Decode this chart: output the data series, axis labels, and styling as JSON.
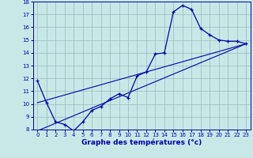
{
  "xlabel": "Graphe des températures (°c)",
  "bg_color": "#c8e8e8",
  "line_color": "#0000aa",
  "grid_color": "#99bbbb",
  "xlim": [
    -0.5,
    23.5
  ],
  "ylim": [
    8,
    18
  ],
  "xticks": [
    0,
    1,
    2,
    3,
    4,
    5,
    6,
    7,
    8,
    9,
    10,
    11,
    12,
    13,
    14,
    15,
    16,
    17,
    18,
    19,
    20,
    21,
    22,
    23
  ],
  "yticks": [
    8,
    9,
    10,
    11,
    12,
    13,
    14,
    15,
    16,
    17,
    18
  ],
  "curve1_x": [
    0,
    1,
    2,
    3,
    4,
    5,
    6,
    7,
    8,
    9,
    10,
    11,
    12,
    13,
    14,
    15,
    16,
    17,
    18,
    19,
    20,
    21,
    22,
    23
  ],
  "curve1_y": [
    11.8,
    10.1,
    8.6,
    8.4,
    7.9,
    8.6,
    9.5,
    9.8,
    10.4,
    10.8,
    10.5,
    12.2,
    12.5,
    13.9,
    14.0,
    17.2,
    17.7,
    17.4,
    15.9,
    15.4,
    15.0,
    14.9,
    14.9,
    14.7
  ],
  "line2_x": [
    0,
    23
  ],
  "line2_y": [
    10.1,
    14.7
  ],
  "line3_x": [
    0,
    23
  ],
  "line3_y": [
    7.9,
    14.7
  ]
}
